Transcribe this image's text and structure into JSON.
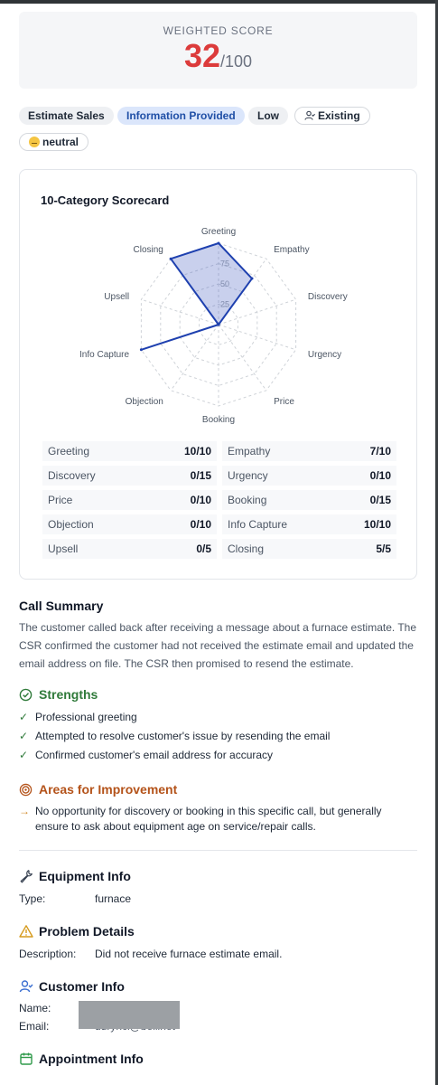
{
  "score": {
    "label": "WEIGHTED SCORE",
    "value": "32",
    "suffix": "/100",
    "color": "#dc3b3b"
  },
  "tags": [
    {
      "label": "Estimate Sales",
      "style": "gray"
    },
    {
      "label": "Information Provided",
      "style": "blue"
    },
    {
      "label": "Low",
      "style": "gray"
    },
    {
      "label": "Existing",
      "style": "outline",
      "icon": "user-check-icon"
    },
    {
      "label": "neutral",
      "style": "outline",
      "icon": "neutral-face-emoji"
    }
  ],
  "scorecard": {
    "title": "10-Category Scorecard",
    "ring_labels": [
      "25",
      "50",
      "75"
    ],
    "categories": [
      {
        "name": "Greeting",
        "score": "10/10"
      },
      {
        "name": "Empathy",
        "score": "7/10"
      },
      {
        "name": "Discovery",
        "score": "0/15"
      },
      {
        "name": "Urgency",
        "score": "0/10"
      },
      {
        "name": "Price",
        "score": "0/10"
      },
      {
        "name": "Booking",
        "score": "0/15"
      },
      {
        "name": "Objection",
        "score": "0/10"
      },
      {
        "name": "Info Capture",
        "score": "10/10"
      },
      {
        "name": "Upsell",
        "score": "0/5"
      },
      {
        "name": "Closing",
        "score": "5/5"
      }
    ]
  },
  "chart_data": {
    "type": "radar",
    "title": "10-Category Scorecard",
    "categories": [
      "Greeting",
      "Empathy",
      "Discovery",
      "Urgency",
      "Price",
      "Booking",
      "Objection",
      "Info Capture",
      "Upsell",
      "Closing"
    ],
    "values": [
      100,
      70,
      0,
      0,
      0,
      0,
      0,
      100,
      0,
      100
    ],
    "rlim": [
      0,
      100
    ],
    "ticks": [
      25,
      50,
      75
    ],
    "color": "#1e40af"
  },
  "summary": {
    "title": "Call Summary",
    "text": "The customer called back after receiving a message about a furnace estimate. The CSR confirmed the customer had not received the estimate email and updated the email address on file. The CSR then promised to resend the estimate."
  },
  "strengths": {
    "title": "Strengths",
    "color": "#2f7a3a",
    "items": [
      "Professional greeting",
      "Attempted to resolve customer's issue by resending the email",
      "Confirmed customer's email address for accuracy"
    ]
  },
  "improvements": {
    "title": "Areas for Improvement",
    "color": "#b4531a",
    "items": [
      "No opportunity for discovery or booking in this specific call, but generally ensure to ask about equipment age on service/repair calls."
    ]
  },
  "equipment": {
    "title": "Equipment Info",
    "type_label": "Type:",
    "type_value": "furnace"
  },
  "problem": {
    "title": "Problem Details",
    "desc_label": "Description:",
    "desc_value": "Did not receive furnace estimate email."
  },
  "customer": {
    "title": "Customer Info",
    "name_label": "Name:",
    "email_label": "Email:",
    "email_value": "ddrynci@bellinet"
  },
  "appointment": {
    "title": "Appointment Info"
  }
}
